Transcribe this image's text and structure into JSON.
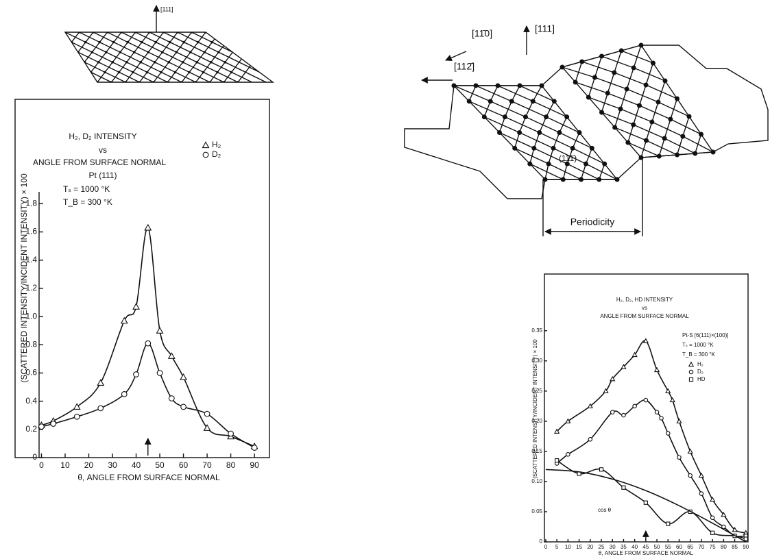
{
  "chart_data": [
    {
      "type": "scatter-line",
      "title": [
        "H₂, D₂ INTENSITY",
        "vs",
        "ANGLE FROM SURFACE NORMAL"
      ],
      "annotations": [
        "Pt (111)",
        "Tₛ = 1000 °K",
        "T_B = 300 °K"
      ],
      "x_label": "θ, ANGLE FROM SURFACE NORMAL",
      "y_label": "(SCATTERED INTENSITY/INCIDENT INTENSITY) × 100",
      "xlim": [
        -1,
        92
      ],
      "ylim": [
        0,
        2.54
      ],
      "xticks": [
        0,
        10,
        20,
        30,
        40,
        50,
        60,
        70,
        80,
        90
      ],
      "yticks": [
        0,
        0.2,
        0.4,
        0.6,
        0.8,
        {
          "value": 1,
          "label": "1.0"
        },
        1.2,
        1.4,
        1.6,
        1.8
      ],
      "marked_x": 45,
      "series": [
        {
          "name": "H₂",
          "marker": "triangle",
          "color": "#111111",
          "x": [
            0,
            5,
            15,
            25,
            35,
            40,
            45,
            50,
            55,
            60,
            70,
            80,
            90
          ],
          "values": [
            0.23,
            0.26,
            0.36,
            0.53,
            0.97,
            1.07,
            1.63,
            0.9,
            0.72,
            0.57,
            0.21,
            0.15,
            0.08
          ]
        },
        {
          "name": "D₂",
          "marker": "circle",
          "color": "#111111",
          "x": [
            0,
            5,
            15,
            25,
            35,
            40,
            45,
            50,
            55,
            60,
            70,
            80,
            90
          ],
          "values": [
            0.22,
            0.24,
            0.29,
            0.35,
            0.45,
            0.59,
            0.81,
            0.6,
            0.42,
            0.36,
            0.31,
            0.17,
            0.07
          ]
        }
      ]
    },
    {
      "type": "scatter-line",
      "title": [
        "H₂, D₂, HD INTENSITY",
        "vs",
        "ANGLE FROM SURFACE NORMAL"
      ],
      "annotations": [
        "Pt-S [6(111)×(100)]",
        "Tₛ = 1000 °K",
        "T_B = 300 °K"
      ],
      "x_label": "θ, ANGLE FROM SURFACE NORMAL",
      "y_label": "(SCATTERED INTENSITY/INCIDENT INTENSITY) × 100",
      "xlim": [
        -0.6,
        91
      ],
      "ylim": [
        0,
        0.444
      ],
      "xticks": [
        0,
        5,
        10,
        15,
        20,
        25,
        30,
        35,
        40,
        45,
        50,
        55,
        60,
        65,
        70,
        75,
        80,
        85,
        90
      ],
      "yticks": [
        0,
        0.05,
        {
          "value": 0.1,
          "label": "0.10"
        },
        0.15,
        {
          "value": 0.2,
          "label": "0.20"
        },
        0.25,
        {
          "value": 0.3,
          "label": "0.30"
        },
        0.35
      ],
      "marked_x": 45,
      "series": [
        {
          "name": "H₂",
          "marker": "triangle",
          "color": "#111111",
          "x": [
            5,
            10,
            20,
            27,
            30,
            35,
            40,
            45,
            50,
            55,
            57,
            60,
            65,
            70,
            75,
            80,
            85,
            90
          ],
          "values": [
            0.183,
            0.2,
            0.225,
            0.25,
            0.27,
            0.29,
            0.31,
            0.333,
            0.285,
            0.25,
            0.235,
            0.2,
            0.15,
            0.11,
            0.07,
            0.045,
            0.02,
            0.015
          ]
        },
        {
          "name": "D₂",
          "marker": "circle",
          "color": "#111111",
          "x": [
            5,
            10,
            20,
            30,
            35,
            40,
            45,
            50,
            52,
            55,
            60,
            65,
            70,
            75,
            80,
            85,
            90
          ],
          "values": [
            0.13,
            0.145,
            0.17,
            0.215,
            0.21,
            0.225,
            0.235,
            0.215,
            0.205,
            0.18,
            0.14,
            0.11,
            0.08,
            0.04,
            0.025,
            0.01,
            0.01
          ]
        },
        {
          "name": "HD",
          "marker": "square",
          "color": "#111111",
          "x": [
            5,
            15,
            25,
            35,
            45,
            55,
            65,
            75,
            85,
            90
          ],
          "values": [
            0.135,
            0.113,
            0.12,
            0.09,
            0.065,
            0.03,
            0.05,
            0.015,
            0.01,
            0.005
          ]
        },
        {
          "name": "cos θ",
          "marker": "none",
          "color": "#111111",
          "x": [
            0,
            15,
            30,
            45,
            60,
            75,
            90
          ],
          "values": [
            0.12,
            0.116,
            0.104,
            0.085,
            0.06,
            0.031,
            0
          ]
        }
      ]
    }
  ],
  "diagrams": {
    "flat_surface": {
      "direction": "[111]"
    },
    "stepped_surface": {
      "directions": [
        "[11̄0]",
        "[111]",
        "[112̄]"
      ],
      "terrace": "(111̄)",
      "period": "Periodicity"
    }
  }
}
